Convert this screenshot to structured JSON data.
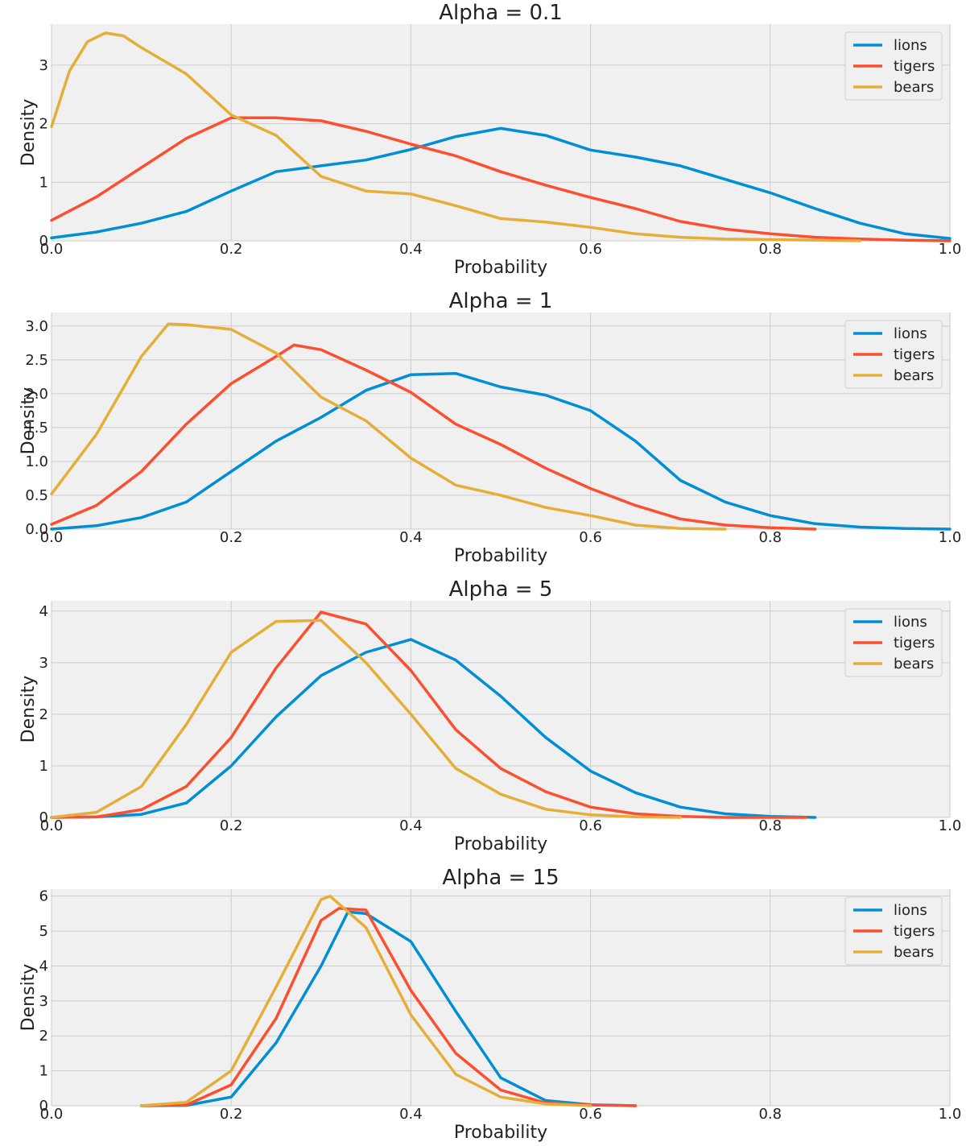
{
  "chart_data": [
    {
      "type": "line",
      "title": "Alpha = 0.1",
      "xlabel": "Probability",
      "ylabel": "Density",
      "xlim": [
        0,
        1
      ],
      "ylim": [
        0,
        3.7
      ],
      "xticks": [
        0,
        0.2,
        0.4,
        0.6,
        0.8,
        1.0
      ],
      "xtick_labels": [
        "0.0",
        "0.2",
        "0.4",
        "0.6",
        "0.8",
        "1.0"
      ],
      "yticks": [
        0,
        1,
        2,
        3
      ],
      "ytick_labels": [
        "0",
        "1",
        "2",
        "3"
      ],
      "grid": true,
      "legend": "top-right",
      "series": [
        {
          "name": "lions",
          "color": "#008fd5",
          "points": [
            [
              0,
              0.05
            ],
            [
              0.05,
              0.15
            ],
            [
              0.1,
              0.3
            ],
            [
              0.15,
              0.5
            ],
            [
              0.2,
              0.85
            ],
            [
              0.25,
              1.18
            ],
            [
              0.3,
              1.28
            ],
            [
              0.35,
              1.38
            ],
            [
              0.4,
              1.56
            ],
            [
              0.45,
              1.78
            ],
            [
              0.5,
              1.92
            ],
            [
              0.55,
              1.8
            ],
            [
              0.6,
              1.55
            ],
            [
              0.65,
              1.43
            ],
            [
              0.7,
              1.28
            ],
            [
              0.75,
              1.05
            ],
            [
              0.8,
              0.82
            ],
            [
              0.85,
              0.55
            ],
            [
              0.9,
              0.3
            ],
            [
              0.95,
              0.12
            ],
            [
              1.0,
              0.04
            ]
          ]
        },
        {
          "name": "tigers",
          "color": "#fc4f30",
          "points": [
            [
              0,
              0.35
            ],
            [
              0.05,
              0.75
            ],
            [
              0.1,
              1.25
            ],
            [
              0.15,
              1.75
            ],
            [
              0.2,
              2.1
            ],
            [
              0.25,
              2.1
            ],
            [
              0.3,
              2.05
            ],
            [
              0.35,
              1.87
            ],
            [
              0.4,
              1.65
            ],
            [
              0.45,
              1.45
            ],
            [
              0.5,
              1.18
            ],
            [
              0.55,
              0.95
            ],
            [
              0.6,
              0.74
            ],
            [
              0.65,
              0.55
            ],
            [
              0.7,
              0.33
            ],
            [
              0.75,
              0.2
            ],
            [
              0.8,
              0.12
            ],
            [
              0.85,
              0.06
            ],
            [
              0.9,
              0.03
            ],
            [
              0.95,
              0.01
            ],
            [
              1.0,
              0.0
            ]
          ]
        },
        {
          "name": "bears",
          "color": "#e5ae38",
          "points": [
            [
              0,
              1.95
            ],
            [
              0.02,
              2.9
            ],
            [
              0.04,
              3.4
            ],
            [
              0.06,
              3.55
            ],
            [
              0.08,
              3.5
            ],
            [
              0.1,
              3.3
            ],
            [
              0.15,
              2.85
            ],
            [
              0.2,
              2.15
            ],
            [
              0.25,
              1.8
            ],
            [
              0.3,
              1.1
            ],
            [
              0.35,
              0.85
            ],
            [
              0.4,
              0.8
            ],
            [
              0.45,
              0.6
            ],
            [
              0.5,
              0.38
            ],
            [
              0.55,
              0.32
            ],
            [
              0.6,
              0.23
            ],
            [
              0.65,
              0.12
            ],
            [
              0.7,
              0.06
            ],
            [
              0.75,
              0.03
            ],
            [
              0.8,
              0.02
            ],
            [
              0.85,
              0.01
            ],
            [
              0.9,
              0.0
            ]
          ]
        }
      ]
    },
    {
      "type": "line",
      "title": "Alpha = 1",
      "xlabel": "Probability",
      "ylabel": "Density",
      "xlim": [
        0,
        1
      ],
      "ylim": [
        0,
        3.2
      ],
      "xticks": [
        0,
        0.2,
        0.4,
        0.6,
        0.8,
        1.0
      ],
      "xtick_labels": [
        "0.0",
        "0.2",
        "0.4",
        "0.6",
        "0.8",
        "1.0"
      ],
      "yticks": [
        0,
        0.5,
        1,
        1.5,
        2,
        2.5,
        3
      ],
      "ytick_labels": [
        "0.0",
        "0.5",
        "1.0",
        "1.5",
        "2.0",
        "2.5",
        "3.0"
      ],
      "grid": true,
      "legend": "top-right",
      "series": [
        {
          "name": "lions",
          "color": "#008fd5",
          "points": [
            [
              0,
              0.0
            ],
            [
              0.05,
              0.05
            ],
            [
              0.1,
              0.17
            ],
            [
              0.15,
              0.4
            ],
            [
              0.2,
              0.85
            ],
            [
              0.25,
              1.3
            ],
            [
              0.3,
              1.65
            ],
            [
              0.35,
              2.05
            ],
            [
              0.4,
              2.28
            ],
            [
              0.45,
              2.3
            ],
            [
              0.5,
              2.1
            ],
            [
              0.55,
              1.98
            ],
            [
              0.6,
              1.75
            ],
            [
              0.65,
              1.3
            ],
            [
              0.7,
              0.72
            ],
            [
              0.75,
              0.4
            ],
            [
              0.8,
              0.2
            ],
            [
              0.85,
              0.08
            ],
            [
              0.9,
              0.03
            ],
            [
              0.95,
              0.01
            ],
            [
              1.0,
              0.0
            ]
          ]
        },
        {
          "name": "tigers",
          "color": "#fc4f30",
          "points": [
            [
              0,
              0.07
            ],
            [
              0.05,
              0.35
            ],
            [
              0.1,
              0.85
            ],
            [
              0.15,
              1.55
            ],
            [
              0.2,
              2.15
            ],
            [
              0.25,
              2.55
            ],
            [
              0.27,
              2.72
            ],
            [
              0.3,
              2.65
            ],
            [
              0.35,
              2.35
            ],
            [
              0.4,
              2.02
            ],
            [
              0.45,
              1.55
            ],
            [
              0.5,
              1.25
            ],
            [
              0.55,
              0.9
            ],
            [
              0.6,
              0.6
            ],
            [
              0.65,
              0.35
            ],
            [
              0.7,
              0.15
            ],
            [
              0.75,
              0.06
            ],
            [
              0.8,
              0.02
            ],
            [
              0.85,
              0.0
            ]
          ]
        },
        {
          "name": "bears",
          "color": "#e5ae38",
          "points": [
            [
              0,
              0.52
            ],
            [
              0.05,
              1.4
            ],
            [
              0.1,
              2.55
            ],
            [
              0.13,
              3.03
            ],
            [
              0.15,
              3.02
            ],
            [
              0.2,
              2.95
            ],
            [
              0.25,
              2.6
            ],
            [
              0.3,
              1.95
            ],
            [
              0.35,
              1.6
            ],
            [
              0.4,
              1.05
            ],
            [
              0.45,
              0.65
            ],
            [
              0.5,
              0.5
            ],
            [
              0.55,
              0.32
            ],
            [
              0.6,
              0.2
            ],
            [
              0.65,
              0.06
            ],
            [
              0.7,
              0.01
            ],
            [
              0.75,
              0.0
            ]
          ]
        }
      ]
    },
    {
      "type": "line",
      "title": "Alpha = 5",
      "xlabel": "Probability",
      "ylabel": "Density",
      "xlim": [
        0,
        1
      ],
      "ylim": [
        0,
        4.2
      ],
      "xticks": [
        0,
        0.2,
        0.4,
        0.6,
        0.8,
        1.0
      ],
      "xtick_labels": [
        "0.0",
        "0.2",
        "0.4",
        "0.6",
        "0.8",
        "1.0"
      ],
      "yticks": [
        0,
        1,
        2,
        3,
        4
      ],
      "ytick_labels": [
        "0",
        "1",
        "2",
        "3",
        "4"
      ],
      "grid": true,
      "legend": "top-right",
      "series": [
        {
          "name": "lions",
          "color": "#008fd5",
          "points": [
            [
              0,
              0.0
            ],
            [
              0.05,
              0.01
            ],
            [
              0.1,
              0.06
            ],
            [
              0.15,
              0.28
            ],
            [
              0.2,
              1.0
            ],
            [
              0.25,
              1.95
            ],
            [
              0.3,
              2.75
            ],
            [
              0.35,
              3.2
            ],
            [
              0.4,
              3.45
            ],
            [
              0.45,
              3.05
            ],
            [
              0.5,
              2.35
            ],
            [
              0.55,
              1.55
            ],
            [
              0.6,
              0.9
            ],
            [
              0.65,
              0.48
            ],
            [
              0.7,
              0.2
            ],
            [
              0.75,
              0.07
            ],
            [
              0.8,
              0.02
            ],
            [
              0.85,
              0.0
            ]
          ]
        },
        {
          "name": "tigers",
          "color": "#fc4f30",
          "points": [
            [
              0,
              0.0
            ],
            [
              0.05,
              0.01
            ],
            [
              0.1,
              0.15
            ],
            [
              0.15,
              0.6
            ],
            [
              0.2,
              1.55
            ],
            [
              0.25,
              2.9
            ],
            [
              0.3,
              3.98
            ],
            [
              0.35,
              3.75
            ],
            [
              0.4,
              2.85
            ],
            [
              0.45,
              1.7
            ],
            [
              0.5,
              0.95
            ],
            [
              0.55,
              0.5
            ],
            [
              0.6,
              0.2
            ],
            [
              0.65,
              0.07
            ],
            [
              0.7,
              0.02
            ],
            [
              0.75,
              0.0
            ],
            [
              0.84,
              0.0
            ]
          ]
        },
        {
          "name": "bears",
          "color": "#e5ae38",
          "points": [
            [
              0,
              0.0
            ],
            [
              0.05,
              0.1
            ],
            [
              0.1,
              0.6
            ],
            [
              0.15,
              1.8
            ],
            [
              0.2,
              3.2
            ],
            [
              0.25,
              3.8
            ],
            [
              0.3,
              3.82
            ],
            [
              0.35,
              3.0
            ],
            [
              0.4,
              2.0
            ],
            [
              0.45,
              0.95
            ],
            [
              0.5,
              0.45
            ],
            [
              0.55,
              0.16
            ],
            [
              0.6,
              0.05
            ],
            [
              0.65,
              0.01
            ],
            [
              0.7,
              0.0
            ]
          ]
        }
      ]
    },
    {
      "type": "line",
      "title": "Alpha = 15",
      "xlabel": "Probability",
      "ylabel": "Density",
      "xlim": [
        0,
        1
      ],
      "ylim": [
        0,
        6.2
      ],
      "xticks": [
        0,
        0.2,
        0.4,
        0.6,
        0.8,
        1.0
      ],
      "xtick_labels": [
        "0.0",
        "0.2",
        "0.4",
        "0.6",
        "0.8",
        "1.0"
      ],
      "yticks": [
        0,
        1,
        2,
        3,
        4,
        5,
        6
      ],
      "ytick_labels": [
        "0",
        "1",
        "2",
        "3",
        "4",
        "5",
        "6"
      ],
      "grid": true,
      "legend": "top-right",
      "series": [
        {
          "name": "lions",
          "color": "#008fd5",
          "points": [
            [
              0.1,
              0.0
            ],
            [
              0.15,
              0.01
            ],
            [
              0.2,
              0.25
            ],
            [
              0.25,
              1.8
            ],
            [
              0.3,
              4.0
            ],
            [
              0.33,
              5.55
            ],
            [
              0.35,
              5.5
            ],
            [
              0.4,
              4.7
            ],
            [
              0.45,
              2.7
            ],
            [
              0.5,
              0.8
            ],
            [
              0.55,
              0.15
            ],
            [
              0.6,
              0.03
            ],
            [
              0.65,
              0.0
            ]
          ]
        },
        {
          "name": "tigers",
          "color": "#fc4f30",
          "points": [
            [
              0.1,
              0.0
            ],
            [
              0.15,
              0.02
            ],
            [
              0.2,
              0.6
            ],
            [
              0.25,
              2.5
            ],
            [
              0.3,
              5.3
            ],
            [
              0.32,
              5.65
            ],
            [
              0.35,
              5.6
            ],
            [
              0.4,
              3.3
            ],
            [
              0.45,
              1.5
            ],
            [
              0.5,
              0.45
            ],
            [
              0.55,
              0.08
            ],
            [
              0.6,
              0.02
            ],
            [
              0.65,
              0.0
            ]
          ]
        },
        {
          "name": "bears",
          "color": "#e5ae38",
          "points": [
            [
              0.1,
              0.0
            ],
            [
              0.15,
              0.1
            ],
            [
              0.2,
              1.0
            ],
            [
              0.25,
              3.4
            ],
            [
              0.3,
              5.9
            ],
            [
              0.31,
              6.0
            ],
            [
              0.35,
              5.1
            ],
            [
              0.4,
              2.6
            ],
            [
              0.45,
              0.9
            ],
            [
              0.5,
              0.25
            ],
            [
              0.55,
              0.05
            ],
            [
              0.6,
              0.0
            ]
          ]
        }
      ]
    }
  ]
}
